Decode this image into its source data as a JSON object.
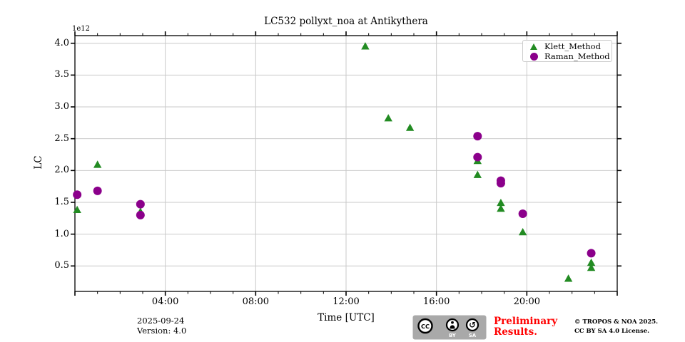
{
  "chart_data": {
    "type": "scatter",
    "title": "LC532 pollyxt_noa at Antikythera",
    "xlabel": "Time [UTC]",
    "ylabel": "LC",
    "y_offset_label": "1e12",
    "grid": true,
    "legend_position": "upper right",
    "x_range_hours": [
      0,
      24
    ],
    "ylim": [
      0.1,
      4.12
    ],
    "x_ticks": {
      "major_hours": [
        4,
        8,
        12,
        16,
        20
      ],
      "labels": [
        "04:00",
        "08:00",
        "12:00",
        "16:00",
        "20:00"
      ],
      "minor_every_hours": 1
    },
    "y_ticks": {
      "values": [
        0.5,
        1.0,
        1.5,
        2.0,
        2.5,
        3.0,
        3.5,
        4.0
      ],
      "labels": [
        "0.5",
        "1.0",
        "1.5",
        "2.0",
        "2.5",
        "3.0",
        "3.5",
        "4.0"
      ]
    },
    "series": [
      {
        "name": "Klett_Method",
        "marker": "triangle",
        "color": "#228B22",
        "points": [
          {
            "t": 0.1,
            "v": 1.38
          },
          {
            "t": 1.0,
            "v": 2.09
          },
          {
            "t": 2.9,
            "v": 1.35
          },
          {
            "t": 12.85,
            "v": 3.95
          },
          {
            "t": 13.87,
            "v": 2.82
          },
          {
            "t": 14.83,
            "v": 2.67
          },
          {
            "t": 17.82,
            "v": 2.15
          },
          {
            "t": 17.82,
            "v": 1.93
          },
          {
            "t": 18.85,
            "v": 1.49
          },
          {
            "t": 18.85,
            "v": 1.4
          },
          {
            "t": 19.82,
            "v": 1.03
          },
          {
            "t": 21.84,
            "v": 0.3
          },
          {
            "t": 22.85,
            "v": 0.55
          },
          {
            "t": 22.85,
            "v": 0.47
          }
        ]
      },
      {
        "name": "Raman_Method",
        "marker": "circle",
        "color": "#8B008B",
        "points": [
          {
            "t": 0.1,
            "v": 1.62
          },
          {
            "t": 1.0,
            "v": 1.68
          },
          {
            "t": 2.9,
            "v": 1.47
          },
          {
            "t": 2.9,
            "v": 1.3
          },
          {
            "t": 17.82,
            "v": 2.54
          },
          {
            "t": 17.82,
            "v": 2.21
          },
          {
            "t": 18.85,
            "v": 1.84
          },
          {
            "t": 18.85,
            "v": 1.8
          },
          {
            "t": 19.82,
            "v": 1.32
          },
          {
            "t": 22.85,
            "v": 0.7
          }
        ]
      }
    ],
    "colors": {
      "gridline": "#c9c9c9",
      "spine": "#000000"
    }
  },
  "footer": {
    "date": "2025-09-24",
    "version": "Version: 4.0",
    "preliminary_line1": "Preliminary",
    "preliminary_line2": "Results.",
    "preliminary_color": "#ff0000",
    "copyright_line1": "© TROPOS & NOA 2025.",
    "copyright_line2": "CC BY SA 4.0 License.",
    "cc_badge": {
      "cc_text": "CC",
      "by_label": "BY",
      "sa_label": "SA",
      "sa_symbol": "↺",
      "background": "#a9a9a9"
    }
  }
}
